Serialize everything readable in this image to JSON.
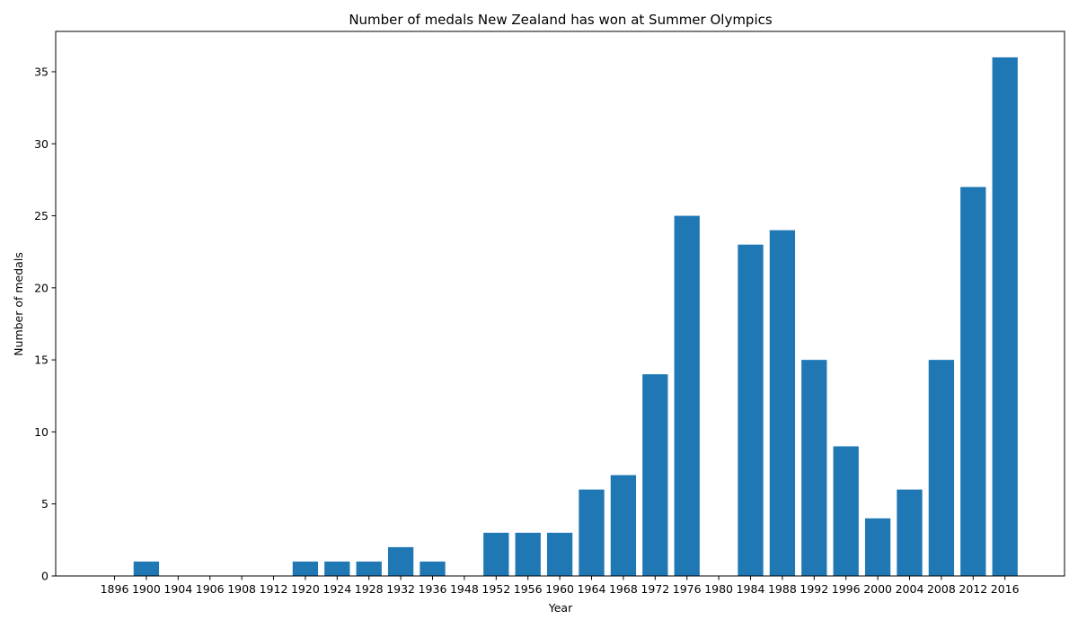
{
  "chart_data": {
    "type": "bar",
    "title": "Number of medals New Zealand has won at Summer Olympics",
    "xlabel": "Year",
    "ylabel": "Number of medals",
    "categories": [
      "1896",
      "1900",
      "1904",
      "1906",
      "1908",
      "1912",
      "1920",
      "1924",
      "1928",
      "1932",
      "1936",
      "1948",
      "1952",
      "1956",
      "1960",
      "1964",
      "1968",
      "1972",
      "1976",
      "1980",
      "1984",
      "1988",
      "1992",
      "1996",
      "2000",
      "2004",
      "2008",
      "2012",
      "2016"
    ],
    "values": [
      0,
      1,
      0,
      0,
      0,
      0,
      1,
      1,
      1,
      2,
      1,
      0,
      3,
      3,
      3,
      6,
      7,
      14,
      25,
      0,
      23,
      24,
      15,
      9,
      4,
      6,
      15,
      27,
      36
    ],
    "ylim": [
      0,
      37.8
    ],
    "yticks": [
      0,
      5,
      10,
      15,
      20,
      25,
      30,
      35
    ],
    "bar_color": "#1f77b4",
    "grid": false,
    "legend": "none"
  }
}
